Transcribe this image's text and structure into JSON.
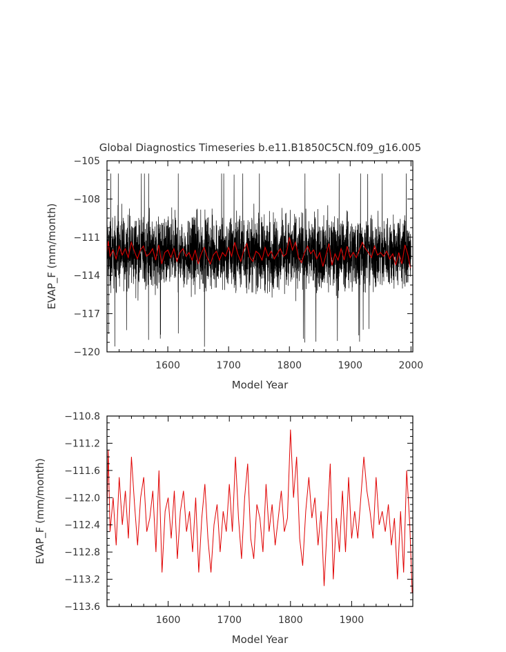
{
  "title": "Global Diagnostics Timeseries b.e11.B1850C5CN.f09_g16.005",
  "colors": {
    "annual": "#e00000",
    "monthly": "#000000",
    "axis": "#000000",
    "text": "#333333"
  },
  "chart_data": [
    {
      "type": "line",
      "xlabel": "Model Year",
      "ylabel": "EVAP_F (mm/month)",
      "xlim": [
        1500,
        2003
      ],
      "ylim": [
        -120,
        -105
      ],
      "xticks": [
        1600,
        1700,
        1800,
        1900,
        2000
      ],
      "xtick_labels": [
        "1600",
        "1700",
        "1800",
        "1900",
        "2000"
      ],
      "yticks": [
        -105,
        -108,
        -111,
        -114,
        -117,
        -120
      ],
      "ytick_labels": [
        "−105",
        "−108",
        "−111",
        "−114",
        "−117",
        "−120"
      ],
      "grid": false,
      "series": [
        {
          "kind": "monthly",
          "band_summary": {
            "mean": -112.2,
            "typical_low": -115.5,
            "typical_high": -108.8,
            "extreme_low": -119.6,
            "extreme_high": -106.0
          }
        },
        {
          "kind": "annual",
          "x": [
            1500,
            1520,
            1540,
            1560,
            1580,
            1600,
            1620,
            1640,
            1660,
            1680,
            1700,
            1720,
            1740,
            1760,
            1780,
            1800,
            1820,
            1840,
            1860,
            1880,
            1900,
            1920,
            1940,
            1960,
            1980,
            2000
          ],
          "y": [
            -112.5,
            -112.2,
            -112.0,
            -112.4,
            -112.1,
            -112.3,
            -112.2,
            -112.0,
            -112.4,
            -112.3,
            -112.0,
            -112.2,
            -112.1,
            -112.3,
            -112.2,
            -111.6,
            -112.3,
            -112.5,
            -112.1,
            -112.2,
            -112.4,
            -111.9,
            -112.2,
            -112.3,
            -112.4,
            -113.2
          ]
        }
      ]
    },
    {
      "type": "line",
      "xlabel": "Model Year",
      "ylabel": "EVAP_F (mm/month)",
      "xlim": [
        1500,
        2000
      ],
      "ylim": [
        -113.6,
        -110.8
      ],
      "xticks": [
        1600,
        1700,
        1800,
        1900
      ],
      "xtick_labels": [
        "1600",
        "1700",
        "1800",
        "1900"
      ],
      "yticks": [
        -110.8,
        -111.2,
        -111.6,
        -112.0,
        -112.4,
        -112.8,
        -113.2,
        -113.6
      ],
      "ytick_labels": [
        "−110.8",
        "−111.2",
        "−111.6",
        "−112.0",
        "−112.4",
        "−112.8",
        "−113.2",
        "−113.6"
      ],
      "grid": false,
      "series": [
        {
          "kind": "annual",
          "x": [
            1500,
            1502,
            1505,
            1510,
            1515,
            1520,
            1525,
            1530,
            1535,
            1540,
            1545,
            1550,
            1555,
            1560,
            1565,
            1570,
            1575,
            1580,
            1585,
            1590,
            1595,
            1600,
            1605,
            1610,
            1615,
            1620,
            1625,
            1630,
            1635,
            1640,
            1645,
            1650,
            1655,
            1660,
            1665,
            1670,
            1675,
            1680,
            1685,
            1690,
            1695,
            1700,
            1705,
            1710,
            1715,
            1720,
            1725,
            1730,
            1735,
            1740,
            1745,
            1750,
            1755,
            1760,
            1765,
            1770,
            1775,
            1780,
            1785,
            1790,
            1795,
            1800,
            1805,
            1810,
            1815,
            1820,
            1825,
            1830,
            1835,
            1840,
            1845,
            1850,
            1855,
            1860,
            1865,
            1870,
            1875,
            1880,
            1885,
            1890,
            1895,
            1900,
            1905,
            1910,
            1915,
            1920,
            1925,
            1930,
            1935,
            1940,
            1945,
            1950,
            1955,
            1960,
            1965,
            1970,
            1975,
            1980,
            1985,
            1990,
            1995,
            1999
          ],
          "y": [
            -112.2,
            -111.3,
            -112.5,
            -112.0,
            -112.7,
            -111.7,
            -112.4,
            -111.9,
            -112.6,
            -111.4,
            -112.1,
            -112.7,
            -112.0,
            -111.7,
            -112.5,
            -112.3,
            -111.9,
            -112.8,
            -111.6,
            -113.1,
            -112.2,
            -112.0,
            -112.6,
            -111.9,
            -112.9,
            -112.2,
            -111.9,
            -112.5,
            -112.2,
            -112.8,
            -112.0,
            -113.1,
            -112.3,
            -111.8,
            -112.6,
            -113.1,
            -112.4,
            -112.1,
            -112.8,
            -112.2,
            -112.5,
            -111.8,
            -112.5,
            -111.4,
            -112.3,
            -112.9,
            -112.0,
            -111.5,
            -112.6,
            -112.9,
            -112.1,
            -112.3,
            -112.8,
            -111.8,
            -112.5,
            -112.1,
            -112.7,
            -112.3,
            -111.9,
            -112.5,
            -112.3,
            -111.0,
            -112.0,
            -111.4,
            -112.6,
            -113.0,
            -112.2,
            -111.7,
            -112.3,
            -112.0,
            -112.7,
            -112.2,
            -113.3,
            -112.4,
            -111.5,
            -113.2,
            -112.3,
            -112.8,
            -111.9,
            -112.8,
            -111.7,
            -112.6,
            -112.2,
            -112.6,
            -112.0,
            -111.4,
            -111.9,
            -112.2,
            -112.6,
            -111.7,
            -112.4,
            -112.2,
            -112.5,
            -112.1,
            -112.7,
            -112.3,
            -113.2,
            -112.2,
            -113.1,
            -111.6,
            -112.4,
            -113.4
          ]
        }
      ]
    }
  ]
}
